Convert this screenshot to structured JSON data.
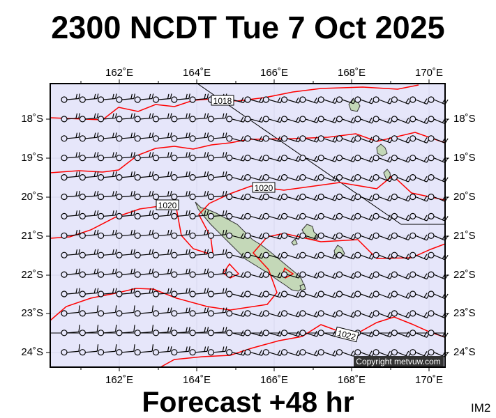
{
  "title": "2300 NCDT Tue 7 Oct 2025",
  "footer": "Forecast +48 hr",
  "tag": "IM2",
  "copyright": "Copyright metvuw.com",
  "lon_labels": [
    "162˚E",
    "164˚E",
    "166˚E",
    "168˚E",
    "170˚E"
  ],
  "lat_labels": [
    "18˚S",
    "19˚S",
    "20˚S",
    "21˚S",
    "22˚S",
    "23˚S",
    "24˚S"
  ],
  "isobar_labels": [
    "1018",
    "1020",
    "1020",
    "1022"
  ],
  "colors": {
    "map_background": "#e6e6fa",
    "isobar": "#ff0000",
    "land": "#c8dcc0",
    "boundary": "#000000",
    "copyright_bg": "#333333"
  },
  "symbols": {
    "station": "circle-icon",
    "wind": "wind-barb-icon"
  }
}
